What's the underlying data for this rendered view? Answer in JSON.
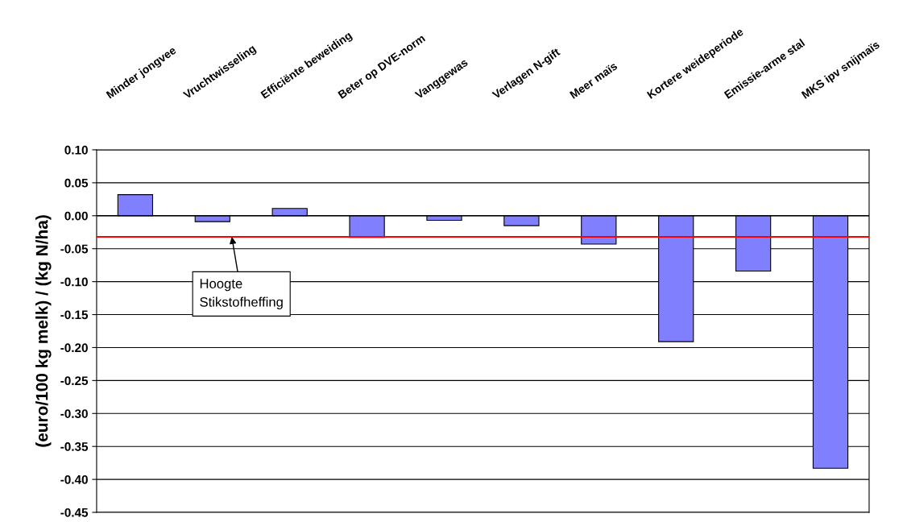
{
  "chart_data": {
    "type": "bar",
    "ylabel": "(euro/100 kg melk) / (kg N/ha)",
    "categories": [
      "Minder jongvee",
      "Vruchtwisseling",
      "Efficiënte beweiding",
      "Beter op DVE-norm",
      "Vanggewas",
      "Verlagen N-gift",
      "Meer maïs",
      "Kortere weideperiode",
      "Emissie-arme stal",
      "MKS ipv snijmaïs"
    ],
    "values": [
      0.032,
      -0.009,
      0.011,
      -0.033,
      -0.007,
      -0.015,
      -0.043,
      -0.191,
      -0.084,
      -0.383
    ],
    "color": "#8080ff",
    "ylim": [
      -0.45,
      0.1
    ],
    "yticks": [
      {
        "value": -0.45,
        "label": "-0.45"
      },
      {
        "value": -0.4,
        "label": "-0.40"
      },
      {
        "value": -0.35,
        "label": "-0.35"
      },
      {
        "value": -0.3,
        "label": "-0.30"
      },
      {
        "value": -0.25,
        "label": "-0.25"
      },
      {
        "value": -0.2,
        "label": "-0.20"
      },
      {
        "value": -0.15,
        "label": "-0.15"
      },
      {
        "value": -0.1,
        "label": "-0.10"
      },
      {
        "value": -0.05,
        "label": "-0.05"
      },
      {
        "value": 0,
        "label": "0.00"
      },
      {
        "value": 0.05,
        "label": "0.05"
      },
      {
        "value": 0.1,
        "label": "0.10"
      }
    ],
    "ref_lines": [
      {
        "axis": "y",
        "value": -0.032,
        "label": "Hoogte\nStikstofheffing",
        "color": "#ff0000"
      }
    ],
    "grid": "y",
    "legend": false
  }
}
